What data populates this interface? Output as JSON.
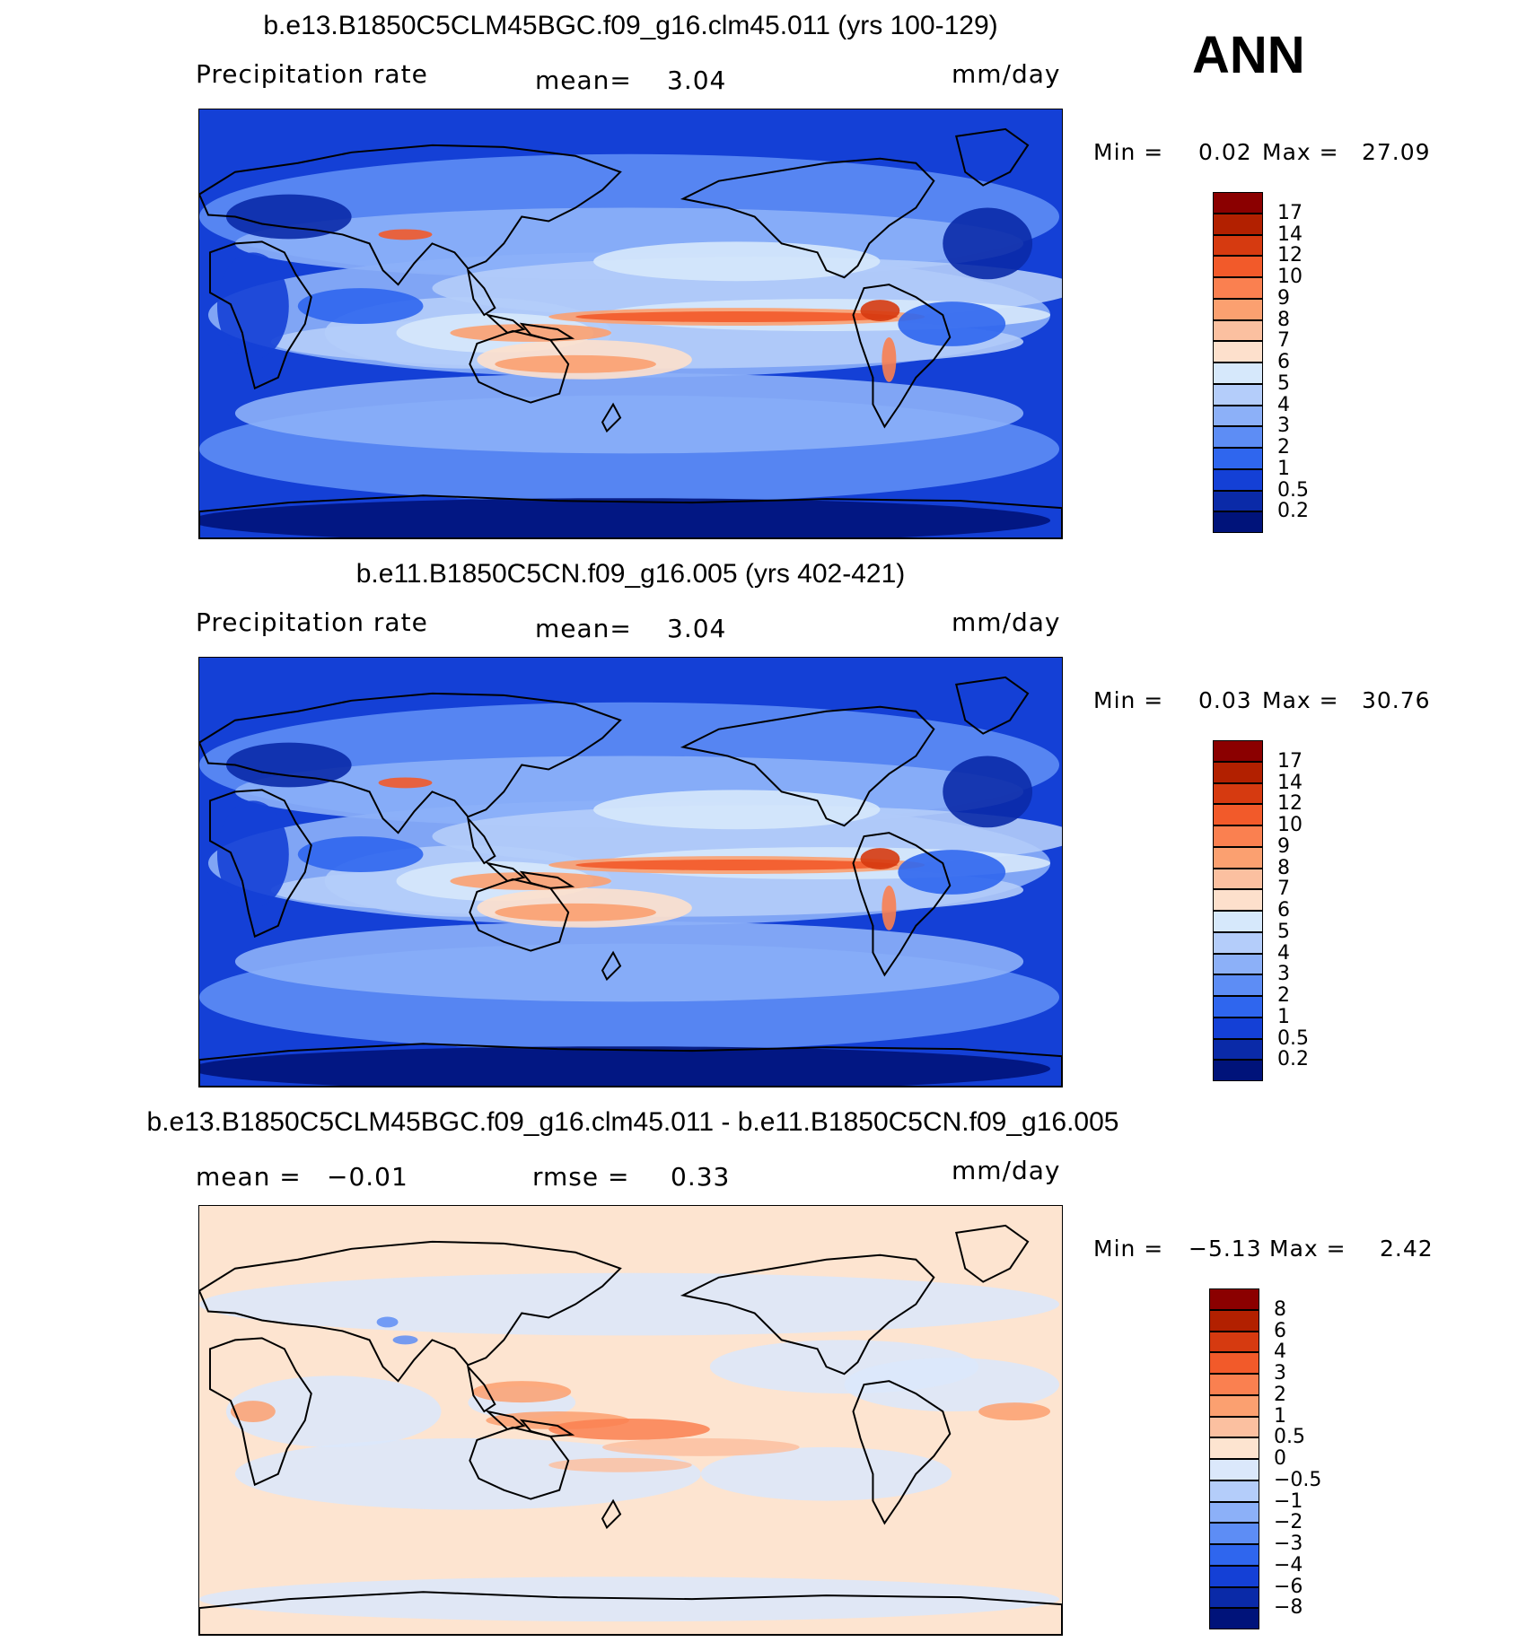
{
  "season_label": "ANN",
  "panels": [
    {
      "title": "b.e13.B1850C5CLM45BGC.f09_g16.clm45.011 (yrs 100-129)",
      "variable": "Precipitation  rate",
      "stat1_label": "mean=",
      "stat1_value": "3.04",
      "stat2_label": "",
      "stat2_value": "",
      "units": "mm/day",
      "min_label": "Min =",
      "min_value": "0.02",
      "max_label": "Max =",
      "max_value": "27.09",
      "colorbar_labels": [
        "17",
        "14",
        "12",
        "10",
        "9",
        "8",
        "7",
        "6",
        "5",
        "4",
        "3",
        "2",
        "1",
        "0.5",
        "0.2"
      ],
      "colorbar_colors": [
        "#8b0000",
        "#b22000",
        "#d63a10",
        "#f25a2a",
        "#fa8050",
        "#fba070",
        "#fbc0a0",
        "#fde0cc",
        "#d6e8fb",
        "#b4cdfa",
        "#8cb0f8",
        "#5d8df5",
        "#2f66ee",
        "#1440d6",
        "#0a2aa8",
        "#00137a"
      ],
      "field": "precip"
    },
    {
      "title": "b.e11.B1850C5CN.f09_g16.005 (yrs 402-421)",
      "variable": "Precipitation  rate",
      "stat1_label": "mean=",
      "stat1_value": "3.04",
      "stat2_label": "",
      "stat2_value": "",
      "units": "mm/day",
      "min_label": "Min =",
      "min_value": "0.03",
      "max_label": "Max =",
      "max_value": "30.76",
      "colorbar_labels": [
        "17",
        "14",
        "12",
        "10",
        "9",
        "8",
        "7",
        "6",
        "5",
        "4",
        "3",
        "2",
        "1",
        "0.5",
        "0.2"
      ],
      "colorbar_colors": [
        "#8b0000",
        "#b22000",
        "#d63a10",
        "#f25a2a",
        "#fa8050",
        "#fba070",
        "#fbc0a0",
        "#fde0cc",
        "#d6e8fb",
        "#b4cdfa",
        "#8cb0f8",
        "#5d8df5",
        "#2f66ee",
        "#1440d6",
        "#0a2aa8",
        "#00137a"
      ],
      "field": "precip"
    },
    {
      "title": "b.e13.B1850C5CLM45BGC.f09_g16.clm45.011 - b.e11.B1850C5CN.f09_g16.005",
      "variable": "",
      "stat1_label": "mean =",
      "stat1_value": "−0.01",
      "stat2_label": "rmse =",
      "stat2_value": "0.33",
      "units": "mm/day",
      "min_label": "Min =",
      "min_value": "−5.13",
      "max_label": "Max =",
      "max_value": "2.42",
      "colorbar_labels": [
        "8",
        "6",
        "4",
        "3",
        "2",
        "1",
        "0.5",
        "0",
        "−0.5",
        "−1",
        "−2",
        "−3",
        "−4",
        "−6",
        "−8"
      ],
      "colorbar_colors": [
        "#8b0000",
        "#b22000",
        "#d63a10",
        "#f25a2a",
        "#fa8050",
        "#fba070",
        "#fbc0a0",
        "#fde4d0",
        "#dbe8fb",
        "#b4cdfa",
        "#8cb0f8",
        "#5d8df5",
        "#2f66ee",
        "#1440d6",
        "#0a2aa8",
        "#00137a"
      ],
      "field": "diff"
    }
  ],
  "chart_data": [
    {
      "type": "heatmap",
      "title": "b.e13.B1850C5CLM45BGC.f09_g16.clm45.011 (yrs 100-129)",
      "variable": "Precipitation  rate",
      "units": "mm/day",
      "mean": 3.04,
      "min": 0.02,
      "max": 27.09,
      "levels": [
        0.2,
        0.5,
        1,
        2,
        3,
        4,
        5,
        6,
        7,
        8,
        9,
        10,
        12,
        14,
        17
      ]
    },
    {
      "type": "heatmap",
      "title": "b.e11.B1850C5CN.f09_g16.005 (yrs 402-421)",
      "variable": "Precipitation  rate",
      "units": "mm/day",
      "mean": 3.04,
      "min": 0.03,
      "max": 30.76,
      "levels": [
        0.2,
        0.5,
        1,
        2,
        3,
        4,
        5,
        6,
        7,
        8,
        9,
        10,
        12,
        14,
        17
      ]
    },
    {
      "type": "heatmap",
      "title": "b.e13.B1850C5CLM45BGC.f09_g16.clm45.011 - b.e11.B1850C5CN.f09_g16.005",
      "units": "mm/day",
      "mean": -0.01,
      "rmse": 0.33,
      "min": -5.13,
      "max": 2.42,
      "levels": [
        -8,
        -6,
        -4,
        -3,
        -2,
        -1,
        -0.5,
        0,
        0.5,
        1,
        2,
        3,
        4,
        6,
        8
      ]
    }
  ]
}
